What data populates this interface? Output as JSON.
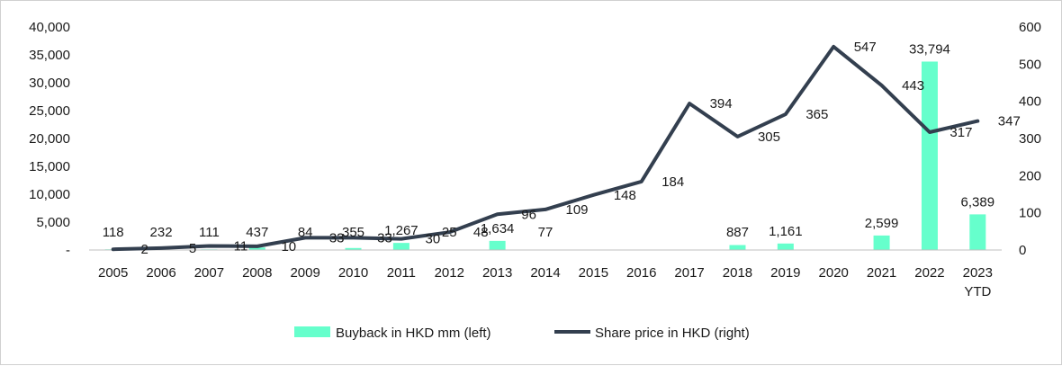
{
  "chart_data": {
    "type": "bar",
    "categories": [
      "2005",
      "2006",
      "2007",
      "2008",
      "2009",
      "2010",
      "2011",
      "2012",
      "2013",
      "2014",
      "2015",
      "2016",
      "2017",
      "2018",
      "2019",
      "2020",
      "2021",
      "2022",
      "2023\nYTD"
    ],
    "series": [
      {
        "name": "Buyback in HKD mm (left)",
        "type": "bar",
        "axis": "left",
        "color": "#66ffcc",
        "values": [
          118,
          232,
          111,
          437,
          84,
          355,
          1267,
          25,
          1634,
          77,
          null,
          null,
          null,
          887,
          1161,
          null,
          2599,
          33794,
          6389
        ],
        "labels": [
          "118",
          "232",
          "111",
          "437",
          "84",
          "355",
          "1,267",
          "25",
          "1,634",
          "77",
          "",
          "",
          "",
          "887",
          "1,161",
          "",
          "2,599",
          "33,794",
          "6,389"
        ]
      },
      {
        "name": "Share price in HKD (right)",
        "type": "line",
        "axis": "right",
        "color": "#333f4f",
        "values": [
          2,
          5,
          11,
          10,
          33,
          33,
          30,
          48,
          96,
          109,
          148,
          184,
          394,
          305,
          365,
          547,
          443,
          317,
          347
        ],
        "labels": [
          "2",
          "5",
          "11",
          "10",
          "33",
          "33",
          "30",
          "48",
          "96",
          "109",
          "148",
          "184",
          "394",
          "305",
          "365",
          "547",
          "443",
          "317",
          "347"
        ]
      }
    ],
    "y_left": {
      "range": [
        0,
        40000
      ],
      "ticks": [
        0,
        5000,
        10000,
        15000,
        20000,
        25000,
        30000,
        35000,
        40000
      ],
      "tick_labels": [
        "-",
        "5,000",
        "10,000",
        "15,000",
        "20,000",
        "25,000",
        "30,000",
        "35,000",
        "40,000"
      ]
    },
    "y_right": {
      "range": [
        0,
        600
      ],
      "ticks": [
        0,
        100,
        200,
        300,
        400,
        500,
        600
      ],
      "tick_labels": [
        "0",
        "100",
        "200",
        "300",
        "400",
        "500",
        "600"
      ]
    },
    "grid": false,
    "legend": "bottom-center"
  }
}
